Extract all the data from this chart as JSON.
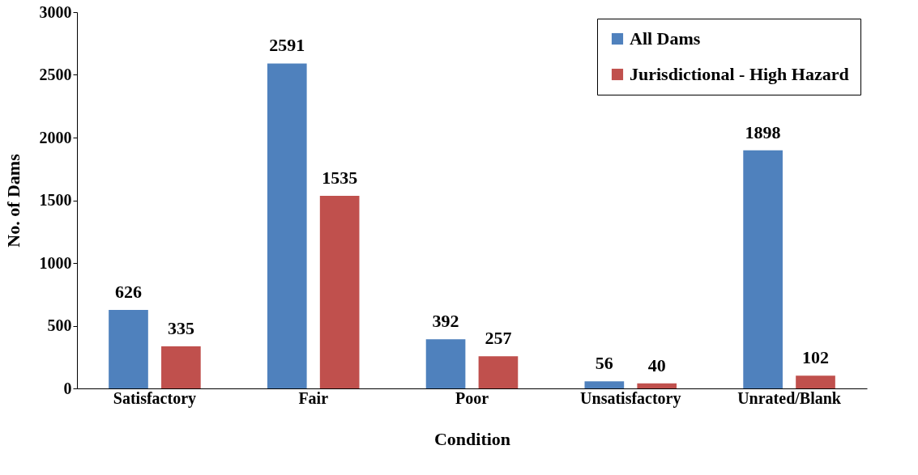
{
  "chart_data": {
    "type": "bar",
    "xlabel": "Condition",
    "ylabel": "No. of Dams",
    "categories": [
      "Satisfactory",
      "Fair",
      "Poor",
      "Unsatisfactory",
      "Unrated/Blank"
    ],
    "series": [
      {
        "name": "All Dams",
        "color": "#4f81bd",
        "values": [
          626,
          2591,
          392,
          56,
          1898
        ]
      },
      {
        "name": "Jurisdictional - High Hazard",
        "color": "#c0504d",
        "values": [
          335,
          1535,
          257,
          40,
          102
        ]
      }
    ],
    "ylim": [
      0,
      3000
    ],
    "yticks": [
      0,
      500,
      1000,
      1500,
      2000,
      2500,
      3000
    ],
    "grid": false,
    "legend": "top right",
    "data_labels": true
  }
}
